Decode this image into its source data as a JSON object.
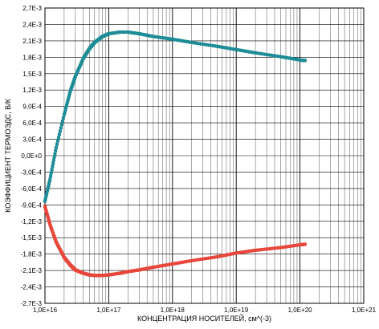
{
  "chart_data": {
    "type": "scatter",
    "xlabel": "КОНЦЕНТРАЦИЯ НОСИТЕЛЕЙ, см^(-3)",
    "ylabel": "КОЭФФИЦИЕНТ ТЕРМОЭДС, В/К",
    "xscale": "log",
    "xlim": [
      1e+16,
      1e+21
    ],
    "ylim": [
      -0.0027,
      0.0027
    ],
    "grid": true,
    "x_ticks": [
      1e+16,
      1e+17,
      1e+18,
      1e+19,
      1e+20,
      1e+21
    ],
    "x_tick_labels": [
      "1,0E+16",
      "1,0E+17",
      "1,0E+18",
      "1,0E+19",
      "1,0E+20",
      "1,0E+21"
    ],
    "y_ticks": [
      0.0027,
      0.0024,
      0.0021,
      0.0018,
      0.0015,
      0.0012,
      0.0009,
      0.0006,
      0.0003,
      0.0,
      -0.0003,
      -0.0006,
      -0.0009,
      -0.0012,
      -0.0015,
      -0.0018,
      -0.0021,
      -0.0024,
      -0.0027
    ],
    "y_tick_labels": [
      "2,7E-3",
      "2,4E-3",
      "2,1E-3",
      "1,8E-3",
      "1,5E-3",
      "1,2E-3",
      "9,0E-4",
      "6,0E-4",
      "3,0E-4",
      "0,0E+0",
      "-3,0E-4",
      "-6,0E-4",
      "-9,0E-4",
      "-1,2E-3",
      "-1,5E-3",
      "-1,8E-3",
      "-2,1E-3",
      "-2,4E-3",
      "-2,7E-3"
    ],
    "series": [
      {
        "color": "#1e8c96",
        "marker": "square",
        "x": [
          1e+16,
          1.2e+16,
          1.5e+16,
          2e+16,
          2.5e+16,
          3e+16,
          4e+16,
          5e+16,
          6e+16,
          8e+16,
          1e+17,
          1.5e+17,
          2e+17,
          3e+17,
          5e+17,
          1e+18,
          2e+18,
          5e+18,
          1e+19,
          2e+19,
          5e+19,
          1e+20,
          1.2e+20
        ],
        "y": [
          -0.00083,
          -0.00043,
          0.00015,
          0.00075,
          0.00118,
          0.00145,
          0.00178,
          0.00196,
          0.00207,
          0.00218,
          0.00223,
          0.00226,
          0.00226,
          0.00223,
          0.00218,
          0.00213,
          0.00207,
          0.002,
          0.00194,
          0.00188,
          0.00181,
          0.00175,
          0.00174
        ]
      },
      {
        "color": "#e8473c",
        "marker": "square",
        "x": [
          1e+16,
          1.2e+16,
          1.5e+16,
          2e+16,
          2.5e+16,
          3e+16,
          4e+16,
          5e+16,
          6e+16,
          8e+16,
          1e+17,
          1.5e+17,
          2e+17,
          3e+17,
          5e+17,
          1e+18,
          2e+18,
          5e+18,
          1e+19,
          2e+19,
          5e+19,
          1e+20,
          1.2e+20
        ],
        "y": [
          -0.00093,
          -0.00126,
          -0.00158,
          -0.00186,
          -0.002,
          -0.00209,
          -0.00215,
          -0.00218,
          -0.00219,
          -0.00219,
          -0.00218,
          -0.00215,
          -0.00212,
          -0.00209,
          -0.00204,
          -0.00198,
          -0.00192,
          -0.00185,
          -0.00178,
          -0.00173,
          -0.00168,
          -0.00163,
          -0.00162
        ]
      }
    ]
  }
}
